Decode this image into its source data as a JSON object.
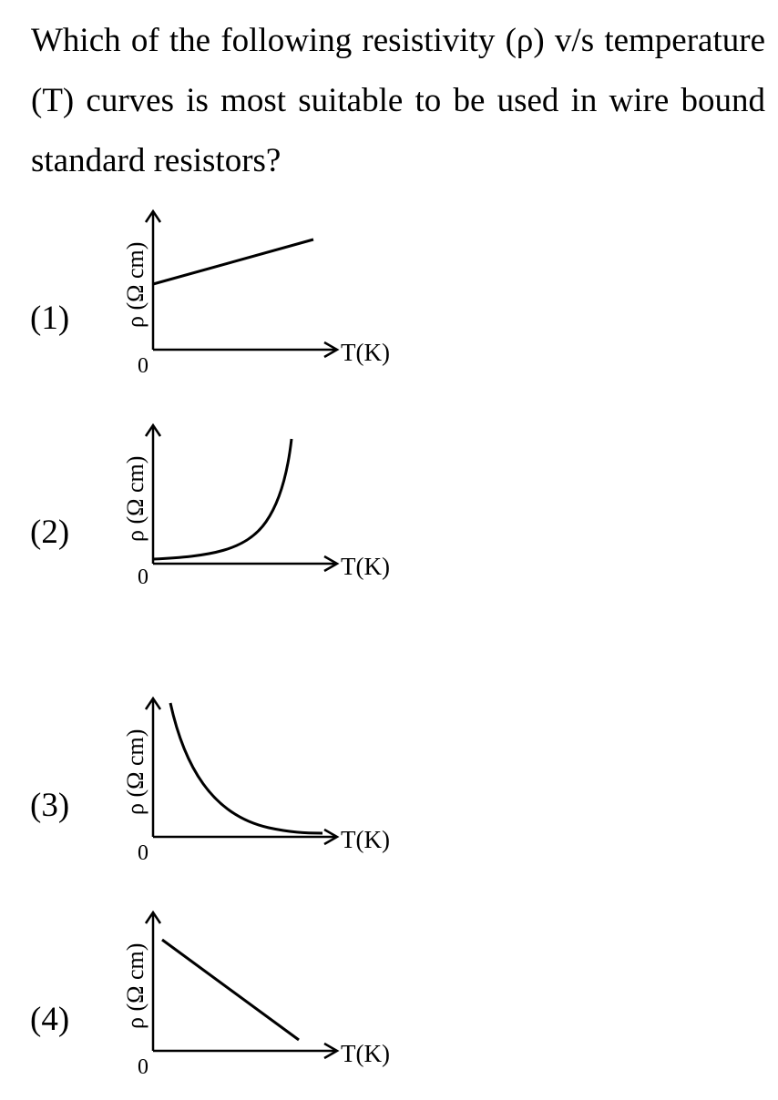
{
  "question": {
    "text": "Which of the following resistivity (ρ) v/s temperature (T) curves is most suitable to be used in wire bound standard resistors?"
  },
  "options": [
    {
      "label": "(1)",
      "ylabel": "ρ (Ω cm)",
      "xlabel": "T(K)",
      "origin": "0",
      "curve": "linear-increasing-positive-intercept"
    },
    {
      "label": "(2)",
      "ylabel": "ρ (Ω cm)",
      "xlabel": "T(K)",
      "origin": "0",
      "curve": "exponential-increasing"
    },
    {
      "label": "(3)",
      "ylabel": "ρ (Ω cm)",
      "xlabel": "T(K)",
      "origin": "0",
      "curve": "decaying"
    },
    {
      "label": "(4)",
      "ylabel": "ρ (Ω cm)",
      "xlabel": "T(K)",
      "origin": "0",
      "curve": "linear-decreasing"
    }
  ]
}
